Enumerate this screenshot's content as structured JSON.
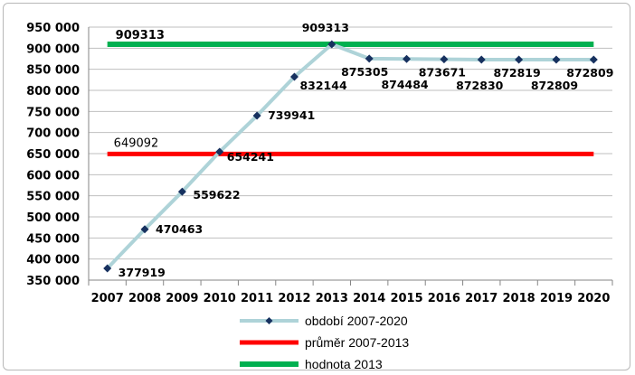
{
  "chart_data": {
    "type": "line",
    "categories": [
      "2007",
      "2008",
      "2009",
      "2010",
      "2011",
      "2012",
      "2013",
      "2014",
      "2015",
      "2016",
      "2017",
      "2018",
      "2019",
      "2020"
    ],
    "ylim": [
      350000,
      950000
    ],
    "y_ticks": [
      350000,
      400000,
      450000,
      500000,
      550000,
      600000,
      650000,
      700000,
      750000,
      800000,
      850000,
      900000,
      950000
    ],
    "y_tick_labels": [
      "350 000",
      "400 000",
      "450 000",
      "500 000",
      "550 000",
      "600 000",
      "650 000",
      "700 000",
      "750 000",
      "800 000",
      "850 000",
      "900 000",
      "950 000"
    ],
    "grid": "horizontal",
    "legend_position": "bottom",
    "series": [
      {
        "name": "období 2007-2020",
        "color": "#aed3d8",
        "marker_color": "#17315f",
        "values": [
          377919,
          470463,
          559622,
          654241,
          739941,
          832144,
          909313,
          875305,
          874484,
          873671,
          872830,
          872819,
          872809,
          872809
        ],
        "labels": [
          "377919",
          "470463",
          "559622",
          "654241",
          "739941",
          "832144",
          "909313",
          "875305",
          "874484",
          "873671",
          "872830",
          "872819",
          "872809",
          "872809"
        ]
      },
      {
        "name": "průměr 2007-2013",
        "color": "#ff0000",
        "value": 649092,
        "label": "649092"
      },
      {
        "name": "hodnota 2013",
        "color": "#00b050",
        "value": 909313,
        "label": "909313"
      }
    ]
  }
}
